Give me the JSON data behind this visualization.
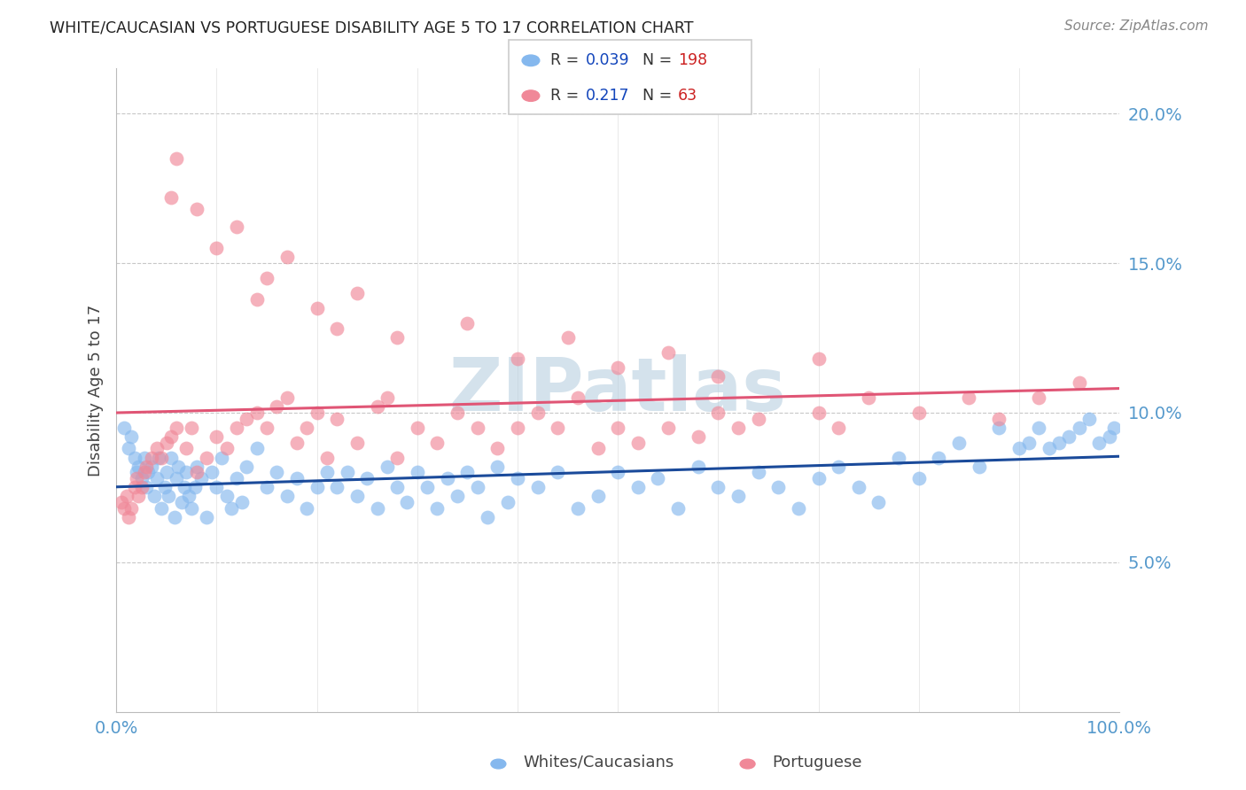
{
  "title": "WHITE/CAUCASIAN VS PORTUGUESE DISABILITY AGE 5 TO 17 CORRELATION CHART",
  "source": "Source: ZipAtlas.com",
  "ylabel": "Disability Age 5 to 17",
  "xlim": [
    0.0,
    100.0
  ],
  "ylim": [
    0.0,
    21.5
  ],
  "yticks": [
    5.0,
    10.0,
    15.0,
    20.0
  ],
  "ytick_labels": [
    "5.0%",
    "10.0%",
    "15.0%",
    "20.0%"
  ],
  "white_R": 0.039,
  "white_N": 198,
  "port_R": 0.217,
  "port_N": 63,
  "white_color": "#85b8ee",
  "port_color": "#f08898",
  "blue_line_color": "#1a4a9a",
  "pink_line_color": "#e05575",
  "pink_dash_color": "#e08898",
  "watermark": "ZIPatlas",
  "watermark_color": "#b8cfe0",
  "legend_R_color": "#1144bb",
  "legend_N_color": "#cc2222",
  "white_x": [
    0.8,
    1.2,
    1.5,
    1.8,
    2.0,
    2.2,
    2.5,
    2.8,
    3.0,
    3.2,
    3.5,
    3.8,
    4.0,
    4.2,
    4.5,
    4.8,
    5.0,
    5.2,
    5.5,
    5.8,
    6.0,
    6.2,
    6.5,
    6.8,
    7.0,
    7.2,
    7.5,
    7.8,
    8.0,
    8.5,
    9.0,
    9.5,
    10.0,
    10.5,
    11.0,
    11.5,
    12.0,
    12.5,
    13.0,
    14.0,
    15.0,
    16.0,
    17.0,
    18.0,
    19.0,
    20.0,
    21.0,
    22.0,
    23.0,
    24.0,
    25.0,
    26.0,
    27.0,
    28.0,
    29.0,
    30.0,
    31.0,
    32.0,
    33.0,
    34.0,
    35.0,
    36.0,
    37.0,
    38.0,
    39.0,
    40.0,
    42.0,
    44.0,
    46.0,
    48.0,
    50.0,
    52.0,
    54.0,
    56.0,
    58.0,
    60.0,
    62.0,
    64.0,
    66.0,
    68.0,
    70.0,
    72.0,
    74.0,
    76.0,
    78.0,
    80.0,
    82.0,
    84.0,
    86.0,
    88.0,
    90.0,
    91.0,
    92.0,
    93.0,
    94.0,
    95.0,
    96.0,
    97.0,
    98.0,
    99.0,
    99.5
  ],
  "white_y": [
    9.5,
    8.8,
    9.2,
    8.5,
    8.0,
    8.2,
    7.8,
    8.5,
    7.5,
    8.0,
    8.2,
    7.2,
    7.8,
    8.5,
    6.8,
    7.5,
    8.0,
    7.2,
    8.5,
    6.5,
    7.8,
    8.2,
    7.0,
    7.5,
    8.0,
    7.2,
    6.8,
    7.5,
    8.2,
    7.8,
    6.5,
    8.0,
    7.5,
    8.5,
    7.2,
    6.8,
    7.8,
    7.0,
    8.2,
    8.8,
    7.5,
    8.0,
    7.2,
    7.8,
    6.8,
    7.5,
    8.0,
    7.5,
    8.0,
    7.2,
    7.8,
    6.8,
    8.2,
    7.5,
    7.0,
    8.0,
    7.5,
    6.8,
    7.8,
    7.2,
    8.0,
    7.5,
    6.5,
    8.2,
    7.0,
    7.8,
    7.5,
    8.0,
    6.8,
    7.2,
    8.0,
    7.5,
    7.8,
    6.8,
    8.2,
    7.5,
    7.2,
    8.0,
    7.5,
    6.8,
    7.8,
    8.2,
    7.5,
    7.0,
    8.5,
    7.8,
    8.5,
    9.0,
    8.2,
    9.5,
    8.8,
    9.0,
    9.5,
    8.8,
    9.0,
    9.2,
    9.5,
    9.8,
    9.0,
    9.2,
    9.5
  ],
  "port_x": [
    0.5,
    0.8,
    1.0,
    1.2,
    1.5,
    1.8,
    2.0,
    2.2,
    2.5,
    2.8,
    3.0,
    3.5,
    4.0,
    4.5,
    5.0,
    5.5,
    6.0,
    7.0,
    7.5,
    8.0,
    9.0,
    10.0,
    11.0,
    12.0,
    13.0,
    14.0,
    15.0,
    16.0,
    17.0,
    18.0,
    19.0,
    20.0,
    21.0,
    22.0,
    24.0,
    26.0,
    27.0,
    28.0,
    30.0,
    32.0,
    34.0,
    36.0,
    38.0,
    40.0,
    42.0,
    44.0,
    46.0,
    48.0,
    50.0,
    52.0,
    55.0,
    58.0,
    60.0,
    62.0,
    64.0,
    70.0,
    72.0,
    75.0,
    80.0,
    85.0,
    88.0,
    92.0,
    96.0
  ],
  "port_y": [
    7.0,
    6.8,
    7.2,
    6.5,
    6.8,
    7.5,
    7.8,
    7.2,
    7.5,
    8.0,
    8.2,
    8.5,
    8.8,
    8.5,
    9.0,
    9.2,
    9.5,
    8.8,
    9.5,
    8.0,
    8.5,
    9.2,
    8.8,
    9.5,
    9.8,
    10.0,
    9.5,
    10.2,
    10.5,
    9.0,
    9.5,
    10.0,
    8.5,
    9.8,
    9.0,
    10.2,
    10.5,
    8.5,
    9.5,
    9.0,
    10.0,
    9.5,
    8.8,
    9.5,
    10.0,
    9.5,
    10.5,
    8.8,
    9.5,
    9.0,
    9.5,
    9.2,
    10.0,
    9.5,
    9.8,
    10.0,
    9.5,
    10.5,
    10.0,
    10.5,
    9.8,
    10.5,
    11.0
  ],
  "port_high_x": [
    5.5,
    6.0,
    8.0,
    10.0,
    12.0,
    14.0,
    15.0,
    17.0,
    20.0,
    22.0,
    24.0,
    28.0,
    35.0,
    40.0,
    45.0,
    50.0,
    55.0,
    60.0,
    70.0
  ],
  "port_high_y": [
    17.2,
    18.5,
    16.8,
    15.5,
    16.2,
    13.8,
    14.5,
    15.2,
    13.5,
    12.8,
    14.0,
    12.5,
    13.0,
    11.8,
    12.5,
    11.5,
    12.0,
    11.2,
    11.8
  ]
}
